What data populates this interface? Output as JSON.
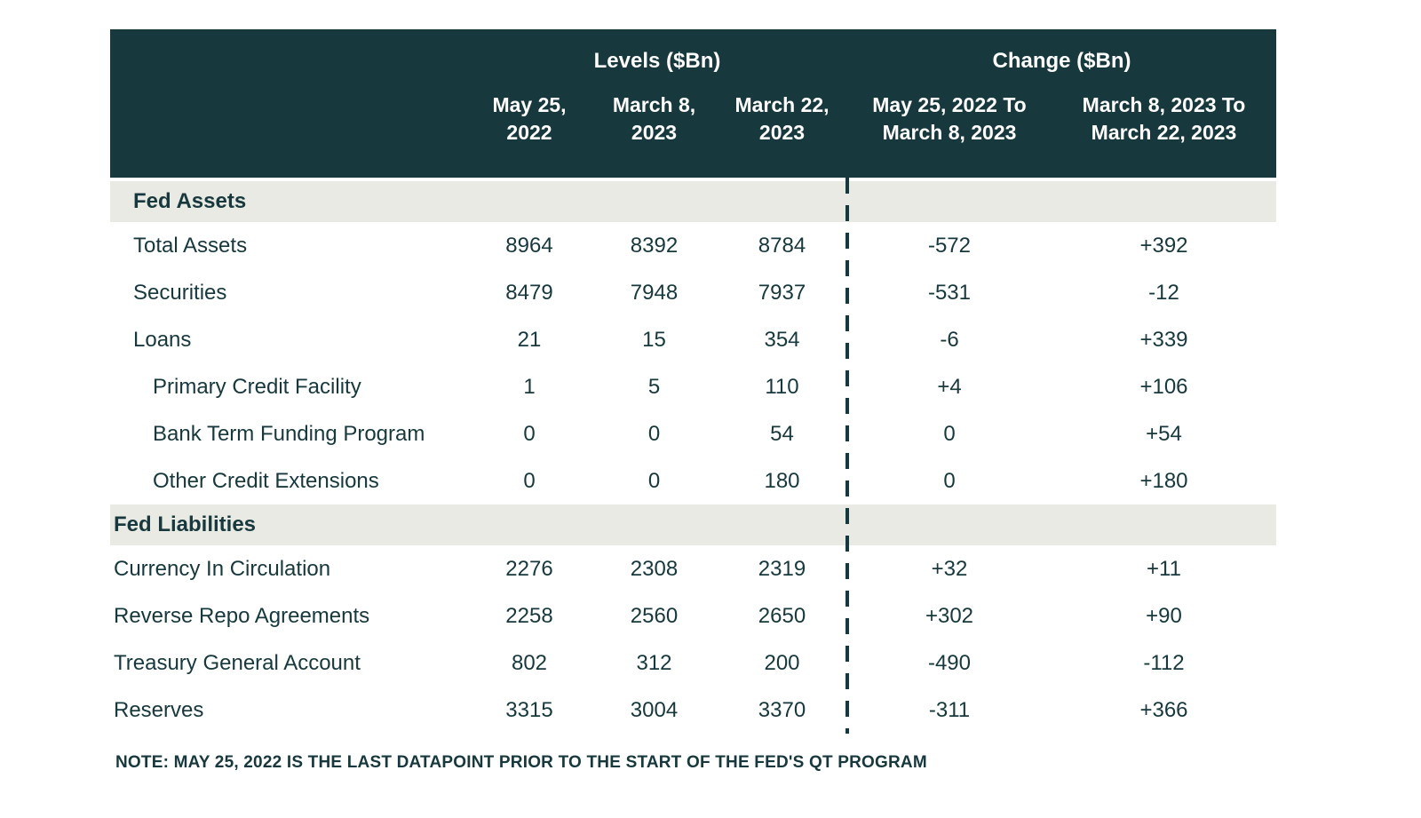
{
  "colors": {
    "header_bg": "#17383d",
    "header_text": "#ffffff",
    "body_text": "#17383d",
    "section_bg": "#e9eae3",
    "divider": "#17383d"
  },
  "table": {
    "groups": [
      "Levels ($Bn)",
      "Change ($Bn)"
    ],
    "columns": [
      "May 25,\n2022",
      "March 8,\n2023",
      "March 22,\n2023",
      "May 25, 2022 To\nMarch 8, 2023",
      "March 8, 2023 To\nMarch 22, 2023"
    ],
    "rows": [
      {
        "type": "section",
        "label": "Fed Assets",
        "indent": 1
      },
      {
        "type": "data",
        "label": "Total Assets",
        "indent": 1,
        "values": [
          "8964",
          "8392",
          "8784",
          "-572",
          "+392"
        ]
      },
      {
        "type": "data",
        "label": "Securities",
        "indent": 1,
        "values": [
          "8479",
          "7948",
          "7937",
          "-531",
          "-12"
        ]
      },
      {
        "type": "data",
        "label": "Loans",
        "indent": 1,
        "values": [
          "21",
          "15",
          "354",
          "-6",
          "+339"
        ]
      },
      {
        "type": "data",
        "label": "Primary Credit Facility",
        "indent": 2,
        "values": [
          "1",
          "5",
          "110",
          "+4",
          "+106"
        ]
      },
      {
        "type": "data",
        "label": "Bank Term Funding Program",
        "indent": 2,
        "values": [
          "0",
          "0",
          "54",
          "0",
          "+54"
        ]
      },
      {
        "type": "data",
        "label": "Other Credit Extensions",
        "indent": 2,
        "values": [
          "0",
          "0",
          "180",
          "0",
          "+180"
        ]
      },
      {
        "type": "section",
        "label": "Fed Liabilities",
        "indent": 0
      },
      {
        "type": "data",
        "label": "Currency In Circulation",
        "indent": 0,
        "values": [
          "2276",
          "2308",
          "2319",
          "+32",
          "+11"
        ]
      },
      {
        "type": "data",
        "label": "Reverse Repo Agreements",
        "indent": 0,
        "values": [
          "2258",
          "2560",
          "2650",
          "+302",
          "+90"
        ]
      },
      {
        "type": "data",
        "label": "Treasury General Account",
        "indent": 0,
        "values": [
          "802",
          "312",
          "200",
          "-490",
          "-112"
        ]
      },
      {
        "type": "data",
        "label": "Reserves",
        "indent": 0,
        "values": [
          "3315",
          "3004",
          "3370",
          "-311",
          "+366"
        ]
      }
    ]
  },
  "note": "NOTE: MAY 25, 2022 IS THE LAST DATAPOINT PRIOR TO THE START OF THE FED'S QT PROGRAM",
  "chart_data": {
    "type": "table",
    "title": "Fed Balance Sheet Levels and Changes",
    "column_groups": [
      {
        "label": "Levels ($Bn)",
        "columns": [
          "May 25, 2022",
          "March 8, 2023",
          "March 22, 2023"
        ]
      },
      {
        "label": "Change ($Bn)",
        "columns": [
          "May 25, 2022 To March 8, 2023",
          "March 8, 2023 To March 22, 2023"
        ]
      }
    ],
    "sections": [
      {
        "name": "Fed Assets",
        "rows": [
          {
            "label": "Total Assets",
            "levels": [
              8964,
              8392,
              8784
            ],
            "changes": [
              -572,
              392
            ]
          },
          {
            "label": "Securities",
            "levels": [
              8479,
              7948,
              7937
            ],
            "changes": [
              -531,
              -12
            ]
          },
          {
            "label": "Loans",
            "levels": [
              21,
              15,
              354
            ],
            "changes": [
              -6,
              339
            ]
          },
          {
            "label": "Primary Credit Facility",
            "levels": [
              1,
              5,
              110
            ],
            "changes": [
              4,
              106
            ]
          },
          {
            "label": "Bank Term Funding Program",
            "levels": [
              0,
              0,
              54
            ],
            "changes": [
              0,
              54
            ]
          },
          {
            "label": "Other Credit Extensions",
            "levels": [
              0,
              0,
              180
            ],
            "changes": [
              0,
              180
            ]
          }
        ]
      },
      {
        "name": "Fed Liabilities",
        "rows": [
          {
            "label": "Currency In Circulation",
            "levels": [
              2276,
              2308,
              2319
            ],
            "changes": [
              32,
              11
            ]
          },
          {
            "label": "Reverse Repo Agreements",
            "levels": [
              2258,
              2560,
              2650
            ],
            "changes": [
              302,
              90
            ]
          },
          {
            "label": "Treasury General Account",
            "levels": [
              802,
              312,
              200
            ],
            "changes": [
              -490,
              -112
            ]
          },
          {
            "label": "Reserves",
            "levels": [
              3315,
              3004,
              3370
            ],
            "changes": [
              -311,
              366
            ]
          }
        ]
      }
    ],
    "note": "NOTE: MAY 25, 2022 IS THE LAST DATAPOINT PRIOR TO THE START OF THE FED'S QT PROGRAM"
  }
}
